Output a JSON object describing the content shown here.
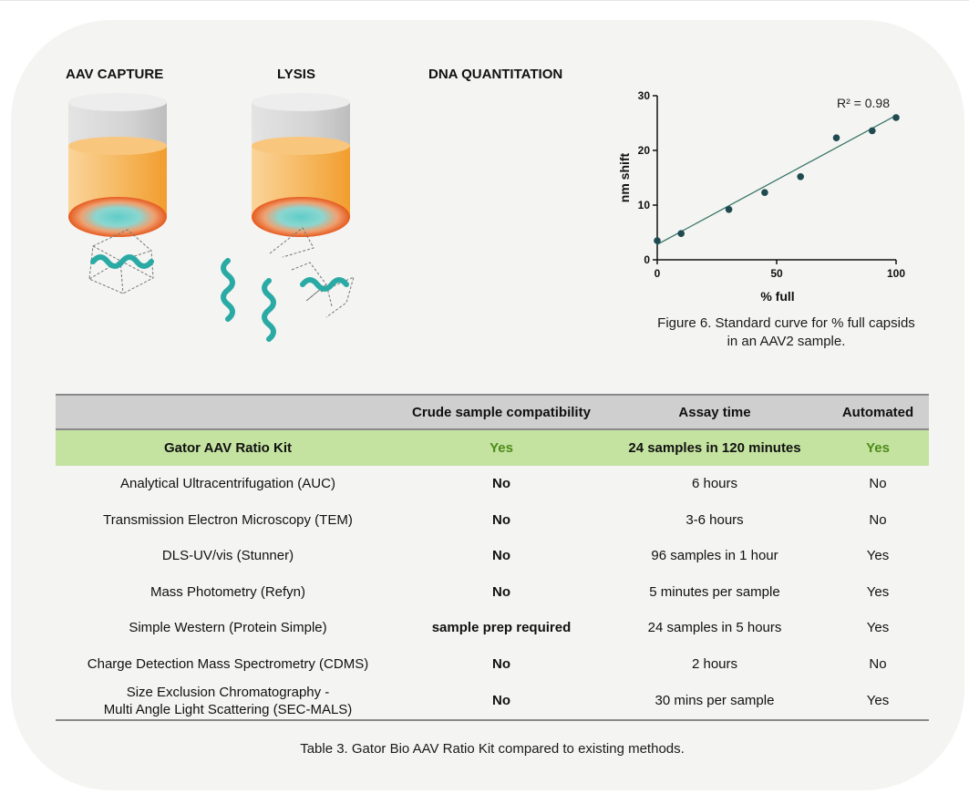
{
  "steps": {
    "capture": "AAV CAPTURE",
    "lysis": "LYSIS",
    "quant": "DNA QUANTITATION"
  },
  "colors": {
    "cap_top": "#d9d9d9",
    "cylinder": "#f5b55a",
    "disc_outer": "#e85a1e",
    "disc_inner": "#6fd0cc",
    "dna": "#2aaaa5",
    "marker": "#1f4a50",
    "fit_line": "#2f6f63",
    "highlight_row": "#c4e3a0",
    "green_text": "#4e8a1a"
  },
  "chart_data": {
    "type": "scatter",
    "xlabel": "% full",
    "ylabel": "nm shift",
    "xlim": [
      0,
      100
    ],
    "ylim": [
      0,
      30
    ],
    "xticks": [
      "0",
      "50",
      "100"
    ],
    "yticks": [
      "0",
      "10",
      "20",
      "30"
    ],
    "annotation": "R² = 0.98",
    "points": [
      {
        "x": 0,
        "y": 3.5
      },
      {
        "x": 10,
        "y": 4.8
      },
      {
        "x": 30,
        "y": 9.2
      },
      {
        "x": 45,
        "y": 12.3
      },
      {
        "x": 60,
        "y": 15.2
      },
      {
        "x": 75,
        "y": 22.3
      },
      {
        "x": 90,
        "y": 23.6
      },
      {
        "x": 100,
        "y": 26.0
      }
    ],
    "fit": {
      "x": [
        0,
        100
      ],
      "y": [
        2.8,
        26.4
      ]
    },
    "grid": false
  },
  "figure_caption": {
    "line1": "Figure 6. Standard curve for % full capsids",
    "line2": "in an AAV2 sample."
  },
  "table": {
    "headers": [
      "",
      "Crude sample compatibility",
      "Assay time",
      "Automated"
    ],
    "rows": [
      {
        "method": "Gator AAV Ratio Kit",
        "crude": "Yes",
        "time": "24 samples in 120 minutes",
        "auto": "Yes"
      },
      {
        "method": "Analytical Ultracentrifugation (AUC)",
        "crude": "No",
        "time": "6 hours",
        "auto": "No"
      },
      {
        "method": "Transmission Electron Microscopy (TEM)",
        "crude": "No",
        "time": "3-6 hours",
        "auto": "No"
      },
      {
        "method": "DLS-UV/vis (Stunner)",
        "crude": "No",
        "time": "96 samples in 1 hour",
        "auto": "Yes"
      },
      {
        "method": "Mass Photometry (Refyn)",
        "crude": "No",
        "time": "5 minutes per sample",
        "auto": "Yes"
      },
      {
        "method": "Simple Western (Protein Simple)",
        "crude": "sample prep required",
        "time": "24 samples in 5 hours",
        "auto": "Yes"
      },
      {
        "method": "Charge Detection Mass Spectrometry (CDMS)",
        "crude": "No",
        "time": "2 hours",
        "auto": "No"
      },
      {
        "method_line1": "Size Exclusion Chromatography -",
        "method_line2": "Multi Angle Light Scattering (SEC-MALS)",
        "crude": "No",
        "time": "30 mins per sample",
        "auto": "Yes"
      }
    ]
  },
  "table_caption": "Table 3. Gator Bio AAV Ratio Kit compared to existing methods."
}
